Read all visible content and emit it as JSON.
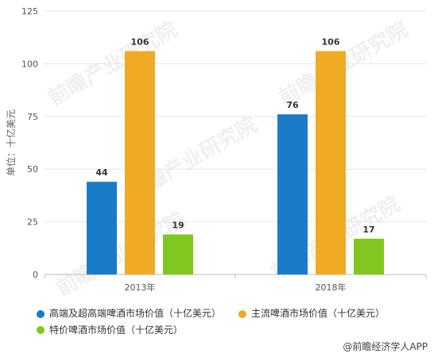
{
  "chart_data": {
    "type": "bar",
    "categories": [
      "2013年",
      "2018年"
    ],
    "series": [
      {
        "name": "高端及超高端啤酒市场价值（十亿美元）",
        "values": [
          44,
          76
        ],
        "color": "#1a7cc8"
      },
      {
        "name": "主流啤酒市场价值（十亿美元）",
        "values": [
          106,
          106
        ],
        "color": "#f0aa24"
      },
      {
        "name": "特价啤酒市场价值（十亿美元）",
        "values": [
          19,
          17
        ],
        "color": "#80c81f"
      }
    ],
    "ylabel": "单位：十亿美元",
    "ylim": [
      0,
      125
    ],
    "yticks": [
      0,
      25,
      50,
      75,
      100,
      125
    ],
    "grid": true,
    "legend": "bottom"
  },
  "credit": "@前瞻经济学人APP",
  "watermark": "前瞻产业研究院"
}
